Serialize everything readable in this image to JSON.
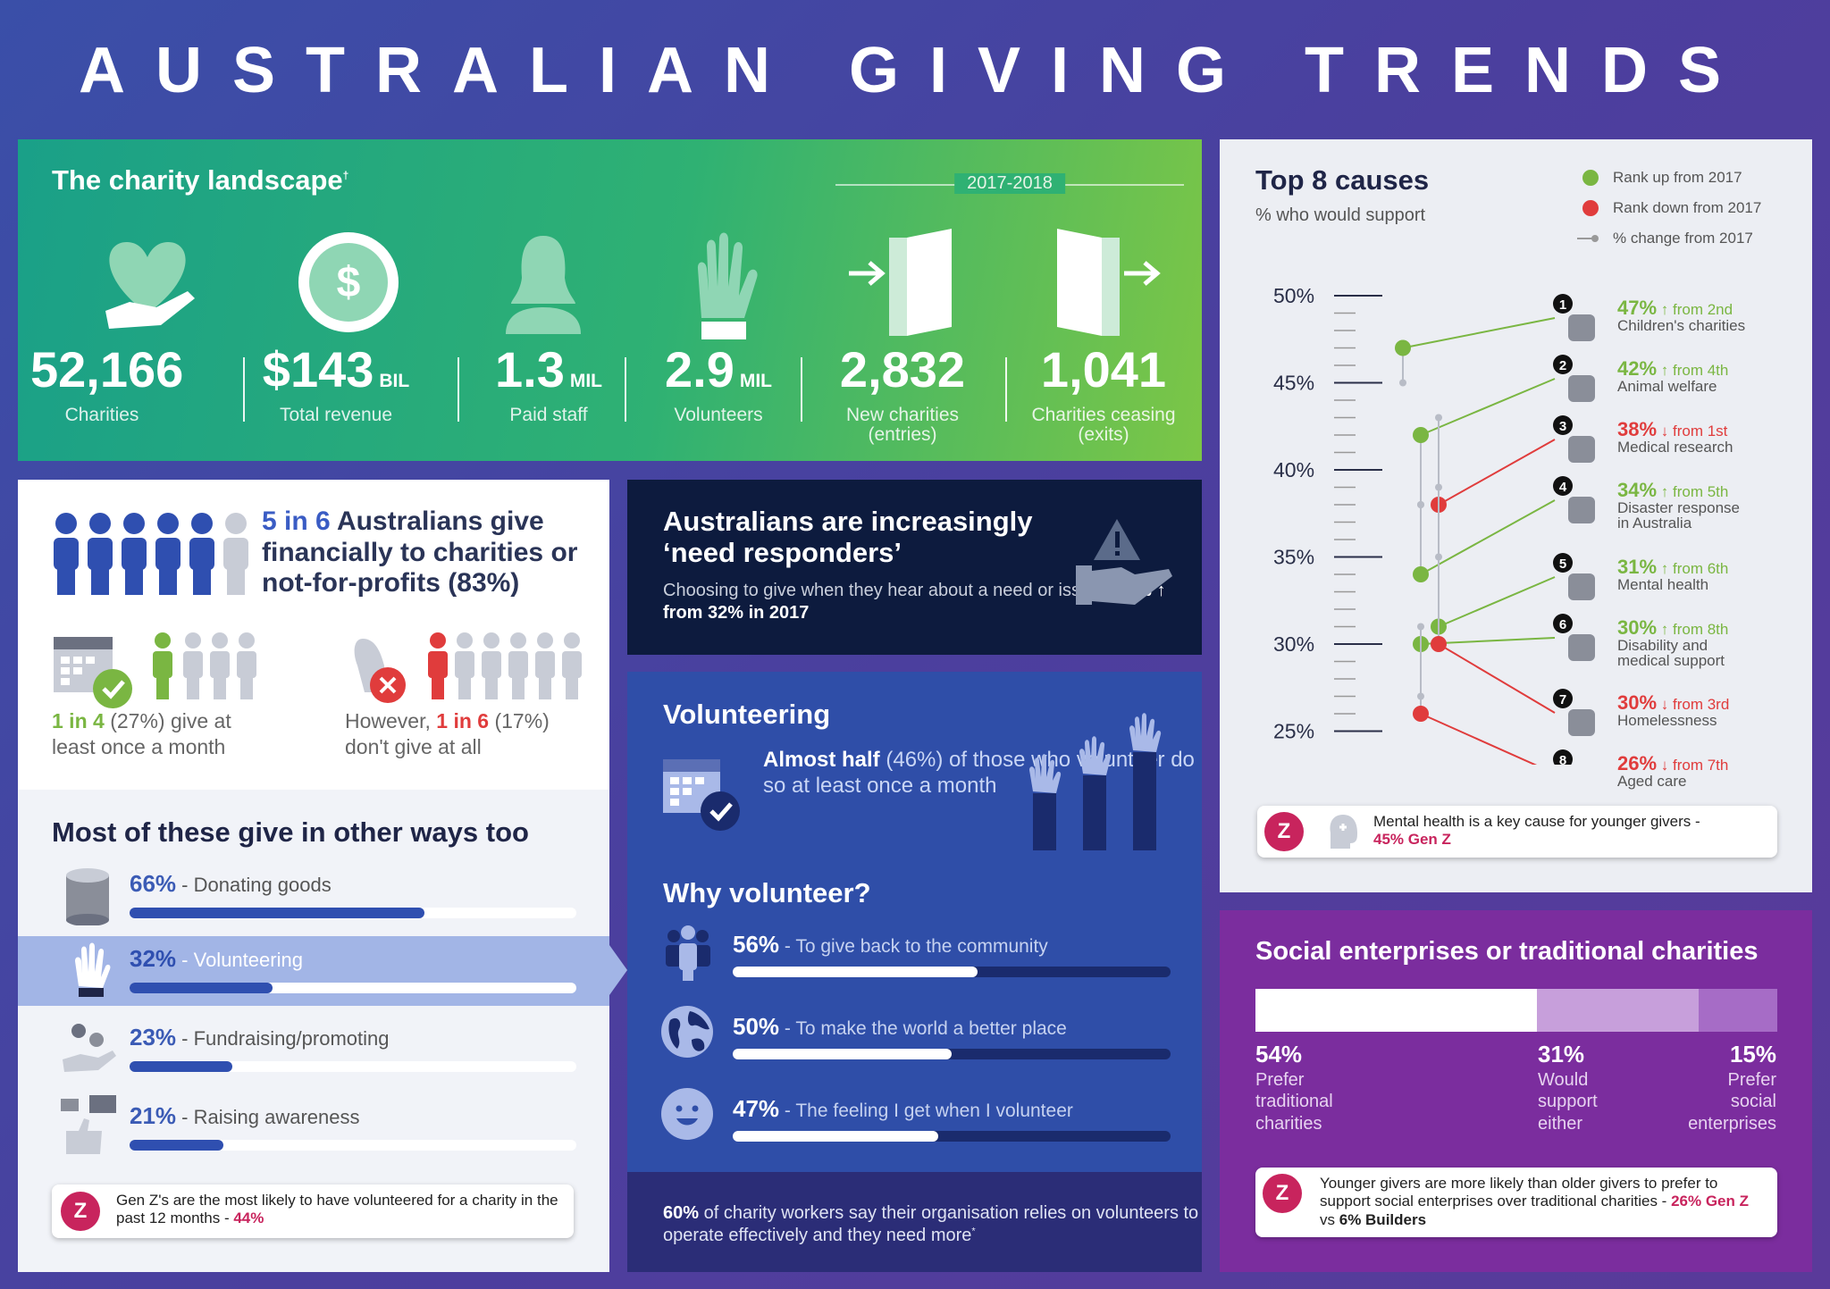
{
  "title": "AUSTRALIAN GIVING TRENDS",
  "landscape": {
    "heading": "The charity landscape",
    "mark": "†",
    "period": "2017-2018",
    "stats": [
      {
        "value": "52,166",
        "unit": "",
        "label": "Charities"
      },
      {
        "value": "$143",
        "unit": "BIL",
        "label": "Total revenue"
      },
      {
        "value": "1.3",
        "unit": "MIL",
        "label": "Paid staff"
      },
      {
        "value": "2.9",
        "unit": "MIL",
        "label": "Volunteers"
      },
      {
        "value": "2,832",
        "unit": "",
        "label": "New charities",
        "label2": "(entries)"
      },
      {
        "value": "1,041",
        "unit": "",
        "label": "Charities ceasing",
        "label2": "(exits)"
      }
    ]
  },
  "give": {
    "n": "5 in 6",
    "heading": "Australians give financially to charities or not-for-profits (83%)",
    "monthly_b": "1 in 4",
    "monthly_a": " (27%) give at",
    "monthly_c": "least once a month",
    "none_a": "However, ",
    "none_b": "1 in 6",
    "none_c": " (17%)",
    "none_d": "don't give at all"
  },
  "ways": {
    "heading": "Most of these give in other ways too",
    "items": [
      {
        "pct": "66%",
        "label": "Donating goods",
        "value": 66
      },
      {
        "pct": "32%",
        "label": "Volunteering",
        "value": 32
      },
      {
        "pct": "23%",
        "label": "Fundraising/promoting",
        "value": 23
      },
      {
        "pct": "21%",
        "label": "Raising awareness",
        "value": 21
      }
    ],
    "z": {
      "badge": "Z",
      "text": "Gen Z's are the most likely to have volunteered for a charity in the past 12 months - ",
      "hl": "44%"
    }
  },
  "need": {
    "heading1": "Australians are increasingly",
    "heading2": "‘need responders’",
    "text": "Choosing to give when they hear about a need or issue - ",
    "hl": "40% ↑ from 32% in 2017"
  },
  "vol": {
    "heading": "Volunteering",
    "ah_b": "Almost half",
    "ah": " (46%) of those who volunteer do so at least once a month",
    "why": "Why volunteer?",
    "reasons": [
      {
        "pct": "56%",
        "label": "To give back to the community",
        "value": 56
      },
      {
        "pct": "50%",
        "label": "To make the world a better place",
        "value": 50
      },
      {
        "pct": "47%",
        "label": "The feeling I get when I volunteer",
        "value": 47
      }
    ],
    "bottom_b": "60%",
    "bottom": " of charity workers say their organisation relies on volunteers to operate effectively and they need more",
    "bottom_mark": "*"
  },
  "top8": {
    "heading": "Top 8 causes",
    "sub": "% who would support",
    "legend": [
      "Rank up from 2017",
      "Rank down from 2017",
      "% change from 2017"
    ],
    "z": {
      "badge": "Z",
      "text": "Mental health is a key cause for younger givers - ",
      "hl": "45% Gen Z"
    }
  },
  "social": {
    "heading": "Social enterprises or traditional charities",
    "segments": [
      {
        "pct": "54%",
        "l1": "Prefer",
        "l2": "traditional",
        "l3": "charities",
        "value": 54
      },
      {
        "pct": "31%",
        "l1": "Would",
        "l2": "support",
        "l3": "either",
        "value": 31
      },
      {
        "pct": "15%",
        "l1": "Prefer",
        "l2": "social",
        "l3": "enterprises",
        "value": 15
      }
    ],
    "z": {
      "badge": "Z",
      "text": "Younger givers are more likely than older givers to prefer to support social enterprises over traditional charities - ",
      "hl": "26% Gen Z",
      "mid": " vs ",
      "b2": "6% Builders"
    }
  },
  "colors": {
    "up": "#7ab642",
    "down": "#e03c3c",
    "navy": "#2f4fb0",
    "purple": "#7b2d9e"
  },
  "chart_data": {
    "type": "scatter",
    "title": "Top 8 causes",
    "ylabel": "% who would support",
    "ylim": [
      25,
      50
    ],
    "yticks": [
      "50%",
      "45%",
      "40%",
      "35%",
      "30%",
      "25%"
    ],
    "legend": [
      "Rank up from 2017",
      "Rank down from 2017",
      "% change from 2017"
    ],
    "series": [
      {
        "rank": "1",
        "name": "Children's charities",
        "pct": "47%",
        "change": "↑ from 2nd",
        "dir": "up",
        "value_2018": 47,
        "value_2017": 45
      },
      {
        "rank": "2",
        "name": "Animal welfare",
        "pct": "42%",
        "change": "↑ from 4th",
        "dir": "up",
        "value_2018": 42,
        "value_2017": 38
      },
      {
        "rank": "3",
        "name": "Medical research",
        "pct": "38%",
        "change": "↓ from 1st",
        "dir": "down",
        "value_2018": 38,
        "value_2017": 43
      },
      {
        "rank": "4",
        "name": "Disaster response",
        "name2": "in Australia",
        "pct": "34%",
        "change": "↑ from 5th",
        "dir": "up",
        "value_2018": 34,
        "value_2017": 38
      },
      {
        "rank": "5",
        "name": "Mental health",
        "pct": "31%",
        "change": "↑ from 6th",
        "dir": "up",
        "value_2018": 31,
        "value_2017": 35
      },
      {
        "rank": "6",
        "name": "Disability and",
        "name2": "medical support",
        "pct": "30%",
        "change": "↑ from 8th",
        "dir": "up",
        "value_2018": 30,
        "value_2017": 27
      },
      {
        "rank": "7",
        "name": "Homelessness",
        "pct": "30%",
        "change": "↓ from 3rd",
        "dir": "down",
        "value_2018": 30,
        "value_2017": 39
      },
      {
        "rank": "8",
        "name": "Aged care",
        "pct": "26%",
        "change": "↓ from 7th",
        "dir": "down",
        "value_2018": 26,
        "value_2017": 31
      }
    ]
  }
}
